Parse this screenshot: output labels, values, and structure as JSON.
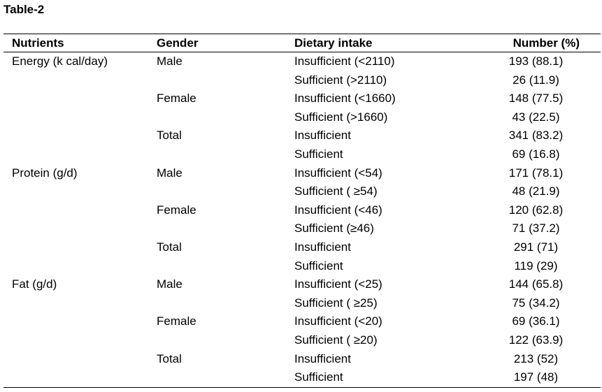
{
  "title": "Table-2",
  "columns": [
    "Nutrients",
    "Gender",
    "Dietary intake",
    "Number (%)"
  ],
  "rows": [
    {
      "nutrient": "Energy (k cal/day)",
      "gender": "Male",
      "intake": "Insufficient (<2110)",
      "number": "193 (88.1)"
    },
    {
      "nutrient": "",
      "gender": "",
      "intake": "Sufficient (>2110)",
      "number": "26 (11.9)"
    },
    {
      "nutrient": "",
      "gender": "Female",
      "intake": "Insufficient (<1660)",
      "number": "148 (77.5)"
    },
    {
      "nutrient": "",
      "gender": "",
      "intake": "Sufficient (>1660)",
      "number": "43 (22.5)"
    },
    {
      "nutrient": "",
      "gender": "Total",
      "intake": "Insufficient",
      "number": "341 (83.2)"
    },
    {
      "nutrient": "",
      "gender": "",
      "intake": "Sufficient",
      "number": "69 (16.8)"
    },
    {
      "nutrient": "Protein (g/d)",
      "gender": "Male",
      "intake": "Insufficient (<54)",
      "number": "171 (78.1)"
    },
    {
      "nutrient": "",
      "gender": "",
      "intake": "Sufficient ( ≥54)",
      "number": "48 (21.9)"
    },
    {
      "nutrient": "",
      "gender": "Female",
      "intake": "Insufficient (<46)",
      "number": "120 (62.8)"
    },
    {
      "nutrient": "",
      "gender": "",
      "intake": "Sufficient (≥46)",
      "number": "71 (37.2)"
    },
    {
      "nutrient": "",
      "gender": "Total",
      "intake": "Insufficient",
      "number": "291 (71)"
    },
    {
      "nutrient": "",
      "gender": "",
      "intake": "Sufficient",
      "number": "119 (29)"
    },
    {
      "nutrient": "Fat (g/d)",
      "gender": "Male",
      "intake": "Insufficient (<25)",
      "number": "144 (65.8)"
    },
    {
      "nutrient": "",
      "gender": "",
      "intake": "Sufficient ( ≥25)",
      "number": "75 (34.2)"
    },
    {
      "nutrient": "",
      "gender": "Female",
      "intake": "Insufficient (<20)",
      "number": "69 (36.1)"
    },
    {
      "nutrient": "",
      "gender": "",
      "intake": "Sufficient ( ≥20)",
      "number": "122 (63.9)"
    },
    {
      "nutrient": "",
      "gender": "Total",
      "intake": "Insufficient",
      "number": "213 (52)"
    },
    {
      "nutrient": "",
      "gender": "",
      "intake": "Sufficient",
      "number": "197 (48)"
    }
  ]
}
